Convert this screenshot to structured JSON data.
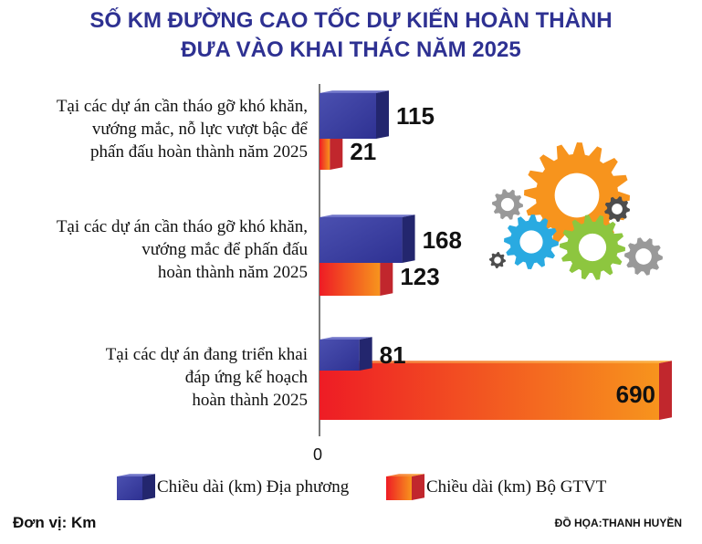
{
  "title_lines": [
    "SỐ KM ĐƯỜNG CAO TỐC DỰ KIẾN HOÀN THÀNH",
    "ĐƯA VÀO KHAI THÁC NĂM 2025"
  ],
  "categories": [
    [
      "Tại các dự án cần tháo gỡ khó khăn,",
      "vướng mắc, nỗ lực vượt bậc để",
      "phấn đấu hoàn thành năm 2025"
    ],
    [
      "Tại các dự án cần tháo gỡ khó khăn,",
      "vướng mắc để phấn đấu",
      "hoàn thành năm 2025"
    ],
    [
      "Tại các dự án đang triển khai",
      "đáp ứng kế hoạch",
      "hoàn thành 2025"
    ]
  ],
  "chart_data": {
    "type": "bar",
    "orientation": "horizontal",
    "categories": [
      "Tại các dự án cần tháo gỡ khó khăn, vướng mắc, nỗ lực vượt bậc để phấn đấu hoàn thành năm 2025",
      "Tại các dự án cần tháo gỡ khó khăn, vướng mắc để phấn đấu hoàn thành năm 2025",
      "Tại các dự án đang triển khai đáp ứng kế hoạch hoàn thành 2025"
    ],
    "series": [
      {
        "name": "Chiều dài (km) Địa phương",
        "values": [
          115,
          168,
          81
        ],
        "color": "#3b3f9c"
      },
      {
        "name": "Chiều dài (km) Bộ GTVT",
        "values": [
          21,
          123,
          690
        ],
        "color": "#ee3a24"
      }
    ],
    "xlim": [
      0,
      690
    ],
    "axis_zero_label": "0",
    "legend_position": "bottom"
  },
  "legend": {
    "local_label": "Chiều dài (km) Địa phương",
    "ministry_label": "Chiều dài (km) Bộ GTVT"
  },
  "unit_label": "Đơn vị: Km",
  "credit": "ĐỒ HỌA:THANH HUYỀN",
  "colors": {
    "title": "#2e3192",
    "blue_front": "#3b3f9c",
    "blue_top": "#6f74c8",
    "blue_side": "#23266e",
    "red_front_left": "#ee1c25",
    "orange_front_right": "#f7941d",
    "red_top": "#f6a04a",
    "red_side": "#c1272d",
    "gear_orange": "#f7941d",
    "gear_cyan": "#29aae1",
    "gear_green": "#8dc63f",
    "gear_gray": "#999999",
    "gear_dark": "#4d4d4d"
  }
}
